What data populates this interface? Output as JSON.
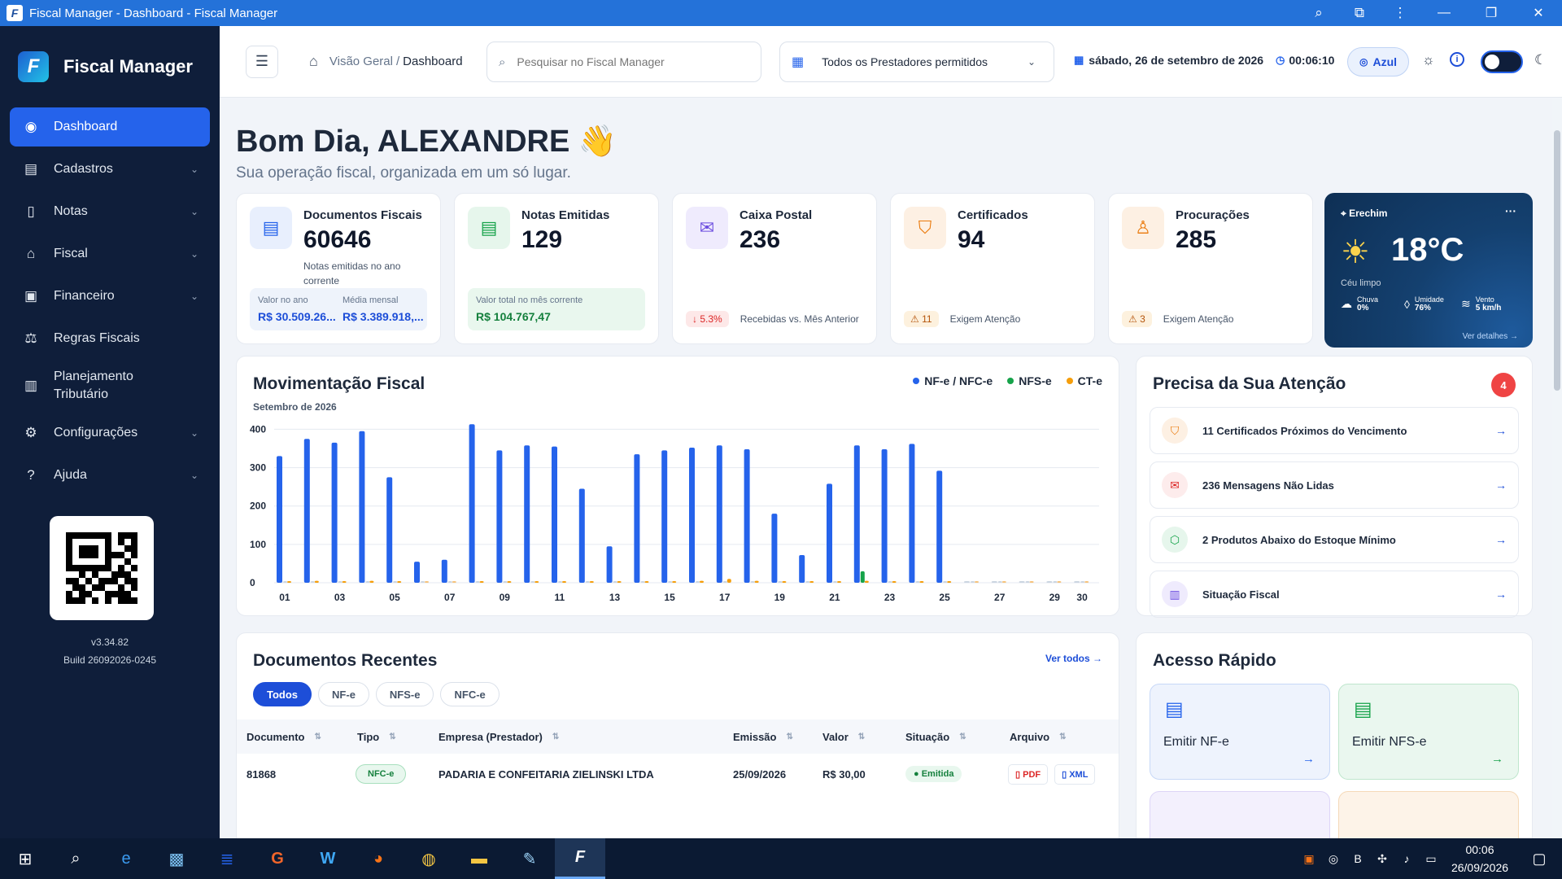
{
  "window": {
    "title": "Fiscal Manager - Dashboard - Fiscal Manager"
  },
  "sidebar": {
    "brand": "Fiscal Manager",
    "items": [
      {
        "label": "Dashboard",
        "icon": "dashboard-icon",
        "active": true
      },
      {
        "label": "Cadastros",
        "icon": "register-icon"
      },
      {
        "label": "Notas",
        "icon": "document-icon"
      },
      {
        "label": "Fiscal",
        "icon": "bank-icon"
      },
      {
        "label": "Financeiro",
        "icon": "wallet-icon"
      },
      {
        "label": "Regras Fiscais",
        "icon": "scale-icon"
      },
      {
        "label": "Planejamento Tributário",
        "icon": "bar-chart-icon"
      },
      {
        "label": "Configurações",
        "icon": "gear-icon"
      },
      {
        "label": "Ajuda",
        "icon": "help-icon"
      }
    ],
    "version": "v3.34.82",
    "build": "Build 26092026-0245"
  },
  "topbar": {
    "breadcrumb_root": "Visão Geral",
    "breadcrumb_sep": "/",
    "breadcrumb_current": "Dashboard",
    "search_placeholder": "Pesquisar no Fiscal Manager",
    "provider_select": "Todos os Prestadores permitidos",
    "date": "sábado, 26 de setembro de 2026",
    "time": "00:06:10",
    "theme_label": "Azul"
  },
  "greeting": {
    "title": "Bom Dia, ALEXANDRE 👋",
    "subtitle": "Sua operação fiscal, organizada em um só lugar."
  },
  "cards": {
    "docs": {
      "title": "Documentos Fiscais",
      "value": "60646",
      "note": "Notas emitidas no ano corrente",
      "year_label": "Valor no ano",
      "year_value": "R$ 30.509.26...",
      "month_label": "Média mensal",
      "month_value": "R$ 3.389.918,..."
    },
    "notas": {
      "title": "Notas Emitidas",
      "value": "129",
      "box_label": "Valor total no mês corrente",
      "box_value": "R$ 104.767,47"
    },
    "caixa": {
      "title": "Caixa Postal",
      "value": "236",
      "pill": "↓ 5.3%",
      "foot": "Recebidas vs. Mês Anterior"
    },
    "cert": {
      "title": "Certificados",
      "value": "94",
      "pill": "⚠ 11",
      "foot": "Exigem Atenção"
    },
    "proc": {
      "title": "Procurações",
      "value": "285",
      "pill": "⚠ 3",
      "foot": "Exigem Atenção"
    }
  },
  "weather": {
    "city": "Erechim",
    "temp": "18°C",
    "desc": "Céu limpo",
    "rain_label": "Chuva",
    "rain": "0%",
    "hum_label": "Umidade",
    "hum": "76%",
    "wind_label": "Vento",
    "wind": "5 km/h",
    "details": "Ver detalhes →"
  },
  "chart_data": {
    "type": "bar",
    "title": "Movimentação Fiscal",
    "subtitle": "Setembro de 2026",
    "categories": [
      "01",
      "02",
      "03",
      "04",
      "05",
      "06",
      "07",
      "08",
      "09",
      "10",
      "11",
      "12",
      "13",
      "14",
      "15",
      "16",
      "17",
      "18",
      "19",
      "20",
      "21",
      "22",
      "23",
      "24",
      "25",
      "26",
      "27",
      "28",
      "29",
      "30"
    ],
    "x_tick_labels": [
      "01",
      "03",
      "05",
      "07",
      "09",
      "11",
      "13",
      "15",
      "17",
      "19",
      "21",
      "23",
      "25",
      "27",
      "29",
      "30"
    ],
    "y_ticks": [
      0,
      100,
      200,
      300,
      400
    ],
    "ylim": [
      0,
      420
    ],
    "legend_position": "top-right",
    "series": [
      {
        "name": "NF-e / NFC-e",
        "color": "#2563eb",
        "values": [
          330,
          375,
          365,
          395,
          275,
          55,
          60,
          413,
          345,
          358,
          355,
          245,
          95,
          335,
          345,
          352,
          358,
          348,
          180,
          72,
          258,
          358,
          348,
          362,
          292,
          0,
          0,
          0,
          0,
          0
        ]
      },
      {
        "name": "NFS-e",
        "color": "#16a34a",
        "values": [
          0,
          0,
          0,
          0,
          0,
          0,
          0,
          0,
          0,
          0,
          0,
          0,
          0,
          0,
          0,
          0,
          0,
          0,
          0,
          0,
          0,
          30,
          0,
          0,
          0,
          0,
          0,
          0,
          0,
          0
        ]
      },
      {
        "name": "CT-e",
        "color": "#f59e0b",
        "values": [
          4,
          5,
          4,
          5,
          2,
          0,
          0,
          3,
          4,
          4,
          4,
          3,
          1,
          4,
          3,
          5,
          10,
          5,
          2,
          1,
          4,
          5,
          4,
          4,
          2,
          0,
          0,
          0,
          0,
          0
        ]
      }
    ]
  },
  "attention": {
    "title": "Precisa da Sua Atenção",
    "count": "4",
    "items": [
      {
        "label": "11 Certificados Próximos do Vencimento",
        "icon": "shield-icon"
      },
      {
        "label": "236 Mensagens Não Lidas",
        "icon": "mail-icon"
      },
      {
        "label": "2 Produtos Abaixo do Estoque Mínimo",
        "icon": "box-icon"
      },
      {
        "label": "Situação Fiscal",
        "icon": "bar-chart-icon"
      }
    ]
  },
  "recent": {
    "title": "Documentos Recentes",
    "view_all": "Ver todos →",
    "filters": [
      "Todos",
      "NF-e",
      "NFS-e",
      "NFC-e"
    ],
    "columns": [
      "Documento",
      "Tipo",
      "Empresa (Prestador)",
      "Emissão",
      "Valor",
      "Situação",
      "Arquivo"
    ],
    "rows": [
      {
        "doc": "81868",
        "tipo": "NFC-e",
        "empresa": "PADARIA E CONFEITARIA ZIELINSKI LTDA",
        "emissao": "25/09/2026",
        "valor": "R$ 30,00",
        "situacao": "Emitida",
        "pdf": "PDF",
        "xml": "XML"
      }
    ]
  },
  "quick": {
    "title": "Acesso Rápido",
    "items": [
      {
        "label": "Emitir NF-e"
      },
      {
        "label": "Emitir NFS-e"
      }
    ]
  },
  "taskbar": {
    "time": "00:06",
    "date": "26/09/2026"
  }
}
